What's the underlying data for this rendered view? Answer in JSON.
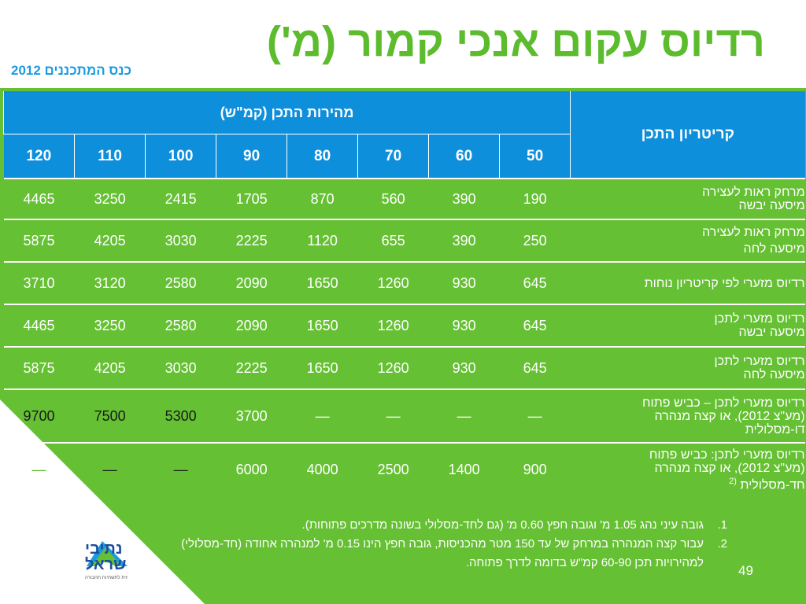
{
  "title": "רדיוס עקום אנכי קמור (מ')",
  "subtitle": "כנס המתכננים 2012",
  "table": {
    "criterion_header": "קריטריון התכן",
    "speed_header": "מהירות התכן (קמ\"ש)",
    "speeds": [
      "50",
      "60",
      "70",
      "80",
      "90",
      "100",
      "110",
      "120"
    ],
    "rows": [
      {
        "crit1": "מרחק ראות לעצירה",
        "crit2": "מיסעה יבשה",
        "sup": "",
        "values": [
          "190",
          "390",
          "560",
          "870",
          "1705",
          "2415",
          "3250",
          "4465"
        ]
      },
      {
        "crit1": "מרחק ראות לעצירה",
        "crit2": "מיסעה לחה",
        "sup": "",
        "values": [
          "250",
          "390",
          "655",
          "1120",
          "2225",
          "3030",
          "4205",
          "5875"
        ]
      },
      {
        "crit1": "רדיוס מזערי לפי קריטריון נוחות",
        "crit2": "",
        "sup": "",
        "values": [
          "645",
          "930",
          "1260",
          "1650",
          "2090",
          "2580",
          "3120",
          "3710"
        ]
      },
      {
        "crit1": "רדיוס מזערי לתכן",
        "crit2": "מיסעה יבשה",
        "sup": "",
        "values": [
          "645",
          "930",
          "1260",
          "1650",
          "2090",
          "2580",
          "3250",
          "4465"
        ]
      },
      {
        "crit1": "רדיוס מזערי לתכן",
        "crit2": "מיסעה לחה",
        "sup": "",
        "values": [
          "645",
          "930",
          "1260",
          "1650",
          "2225",
          "3030",
          "4205",
          "5875"
        ]
      },
      {
        "crit1": "רדיוס מזערי לתכן – כביש פתוח",
        "crit2": "(מע\"צ 2012), או קצה מנהרה",
        "crit3": "דו-מסלולית",
        "sup": "",
        "values": [
          "—",
          "—",
          "—",
          "—",
          "3700",
          "5300",
          "7500",
          "9700"
        ]
      },
      {
        "crit1": "רדיוס מזערי לתכן: כביש פתוח",
        "crit2": "(מע\"צ 2012), או קצה מנהרה",
        "crit3": "חד-מסלולית",
        "sup": "(2",
        "values": [
          "900",
          "1400",
          "2500",
          "4000",
          "6000",
          "—",
          "—",
          "—"
        ]
      }
    ]
  },
  "notes": [
    {
      "num": "1.",
      "text": "גובה עיני נהג 1.05 מ' וגובה חפץ 0.60 מ' (גם לחד-מסלולי בשונה מדרכים פתוחות)."
    },
    {
      "num": "2.",
      "text": "עבור קצה המנהרה במרחק של עד 150 מטר מהכניסות, גובה חפץ הינו 0.15 מ' למנהרה אחודה (חד-מסלולי) למהירויות תכן 60-90 קמ\"ש בדומה לדרך פתוחה."
    }
  ],
  "page_number": "49",
  "logo": {
    "line1": "נתיבי",
    "line2": "ישראל",
    "tagline": "החברה הלאומית לתשתיות תחבורה"
  },
  "colors": {
    "green": "#65c033",
    "blue": "#0e8fdc",
    "title_green": "#5cbc2d",
    "subtitle_blue": "#1d9be0"
  }
}
